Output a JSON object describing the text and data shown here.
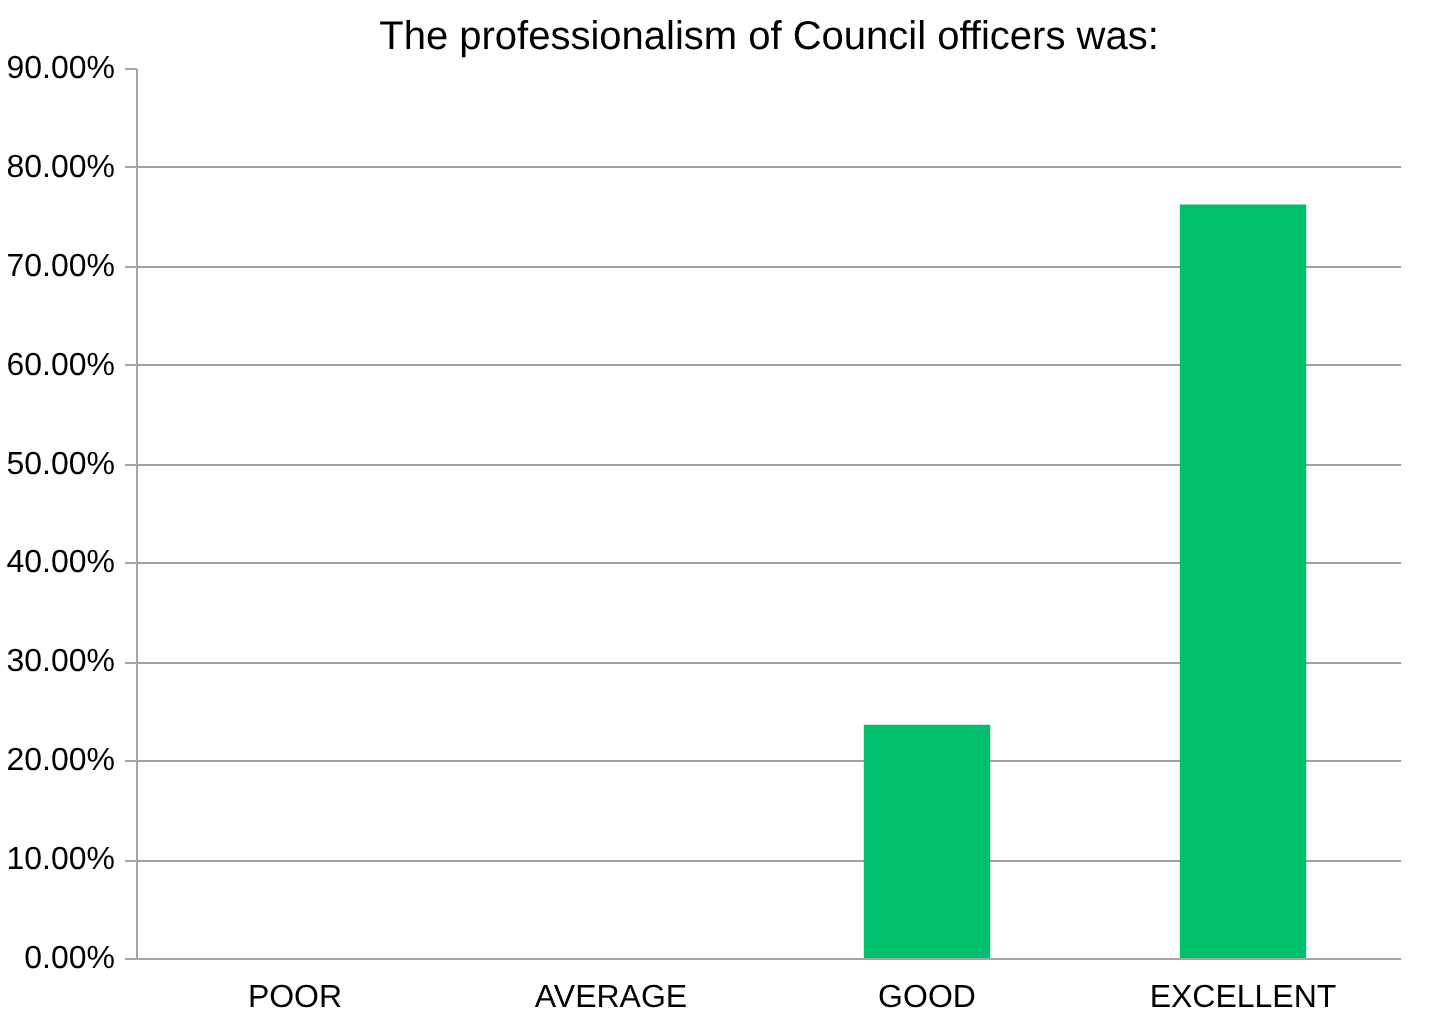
{
  "chart_data": {
    "type": "bar",
    "title": "The professionalism of Council officers was:",
    "categories": [
      "POOR",
      "AVERAGE",
      "GOOD",
      "EXCELLENT"
    ],
    "values": [
      0,
      0,
      23.7,
      76.3
    ],
    "color": "#00c06e",
    "ylim": [
      0,
      90
    ],
    "yticks": [
      {
        "value": 0,
        "label": "0.00%"
      },
      {
        "value": 10,
        "label": "10.00%"
      },
      {
        "value": 20,
        "label": "20.00%"
      },
      {
        "value": 30,
        "label": "30.00%"
      },
      {
        "value": 40,
        "label": "40.00%"
      },
      {
        "value": 50,
        "label": "50.00%"
      },
      {
        "value": 60,
        "label": "60.00%"
      },
      {
        "value": 70,
        "label": "70.00%"
      },
      {
        "value": 80,
        "label": "80.00%"
      },
      {
        "value": 90,
        "label": "90.00%"
      }
    ],
    "grid": "y"
  }
}
